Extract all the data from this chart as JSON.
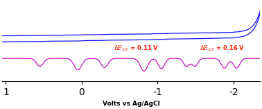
{
  "xlim": [
    1.05,
    -2.35
  ],
  "xlabel": "Volts vs Ag/AgCl",
  "xlabel_fontsize": 6.5,
  "xlabel_fontweight": "bold",
  "cv_color": "#1111ee",
  "dpv_color": "#cc00cc",
  "ann_color": "#ff2200",
  "ann_fontsize": 6.0,
  "xticks": [
    1,
    0,
    -1,
    -2
  ],
  "background": "#ffffff",
  "figsize": [
    3.78,
    1.57
  ],
  "dpi": 100
}
